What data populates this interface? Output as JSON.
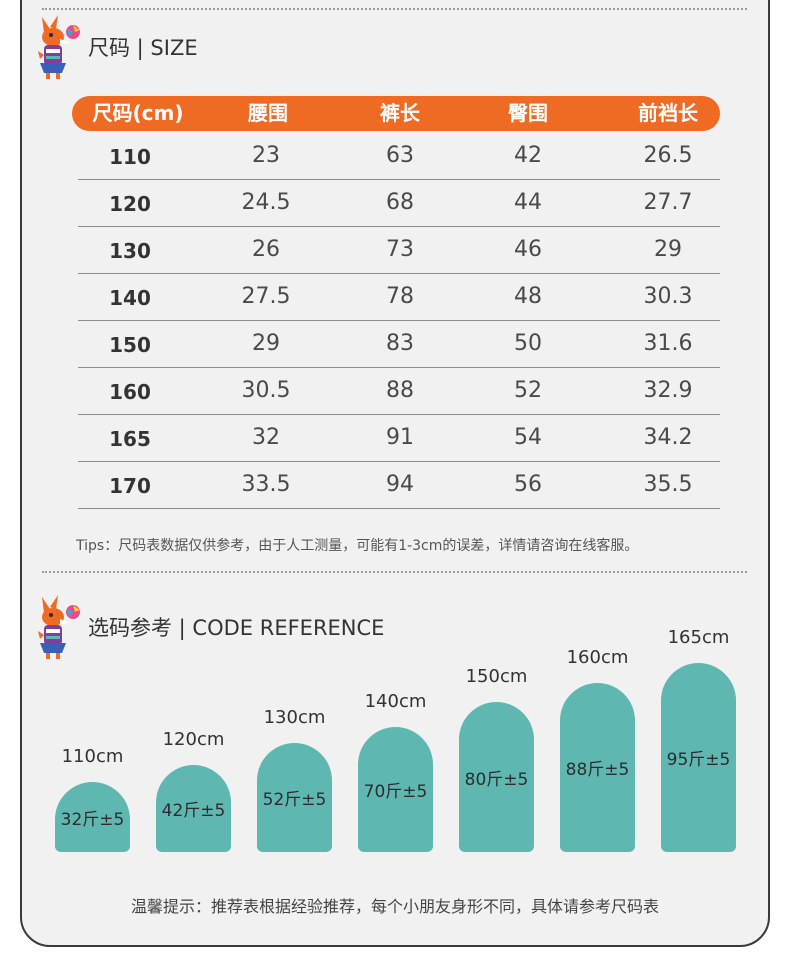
{
  "size_section": {
    "title": "尺码 | SIZE"
  },
  "table": {
    "headers": [
      "尺码(cm)",
      "腰围",
      "裤长",
      "臀围",
      "前裆长"
    ],
    "rows": [
      [
        "110",
        "23",
        "63",
        "42",
        "26.5"
      ],
      [
        "120",
        "24.5",
        "68",
        "44",
        "27.7"
      ],
      [
        "130",
        "26",
        "73",
        "46",
        "29"
      ],
      [
        "140",
        "27.5",
        "78",
        "48",
        "30.3"
      ],
      [
        "150",
        "29",
        "83",
        "50",
        "31.6"
      ],
      [
        "160",
        "30.5",
        "88",
        "52",
        "32.9"
      ],
      [
        "165",
        "32",
        "91",
        "54",
        "34.2"
      ],
      [
        "170",
        "33.5",
        "94",
        "56",
        "35.5"
      ]
    ]
  },
  "tips": "Tips：尺码表数据仅供参考，由于人工测量，可能有1-3cm的误差，详情请咨询在线客服。",
  "reference_section": {
    "title": "选码参考 | CODE REFERENCE"
  },
  "reference": [
    {
      "height": "110cm",
      "weight": "32斤±5"
    },
    {
      "height": "120cm",
      "weight": "42斤±5"
    },
    {
      "height": "130cm",
      "weight": "52斤±5"
    },
    {
      "height": "140cm",
      "weight": "70斤±5"
    },
    {
      "height": "150cm",
      "weight": "80斤±5"
    },
    {
      "height": "160cm",
      "weight": "88斤±5"
    },
    {
      "height": "165cm",
      "weight": "95斤±5"
    }
  ],
  "note": "温馨提示：推荐表根据经验推荐，每个小朋友身形不同，具体请参考尺码表",
  "colors": {
    "header_orange": "#ef6a22",
    "pill_teal": "#5fb7b1",
    "background": "#f2f1f1"
  },
  "icons": [
    "fox-mascot-icon"
  ]
}
